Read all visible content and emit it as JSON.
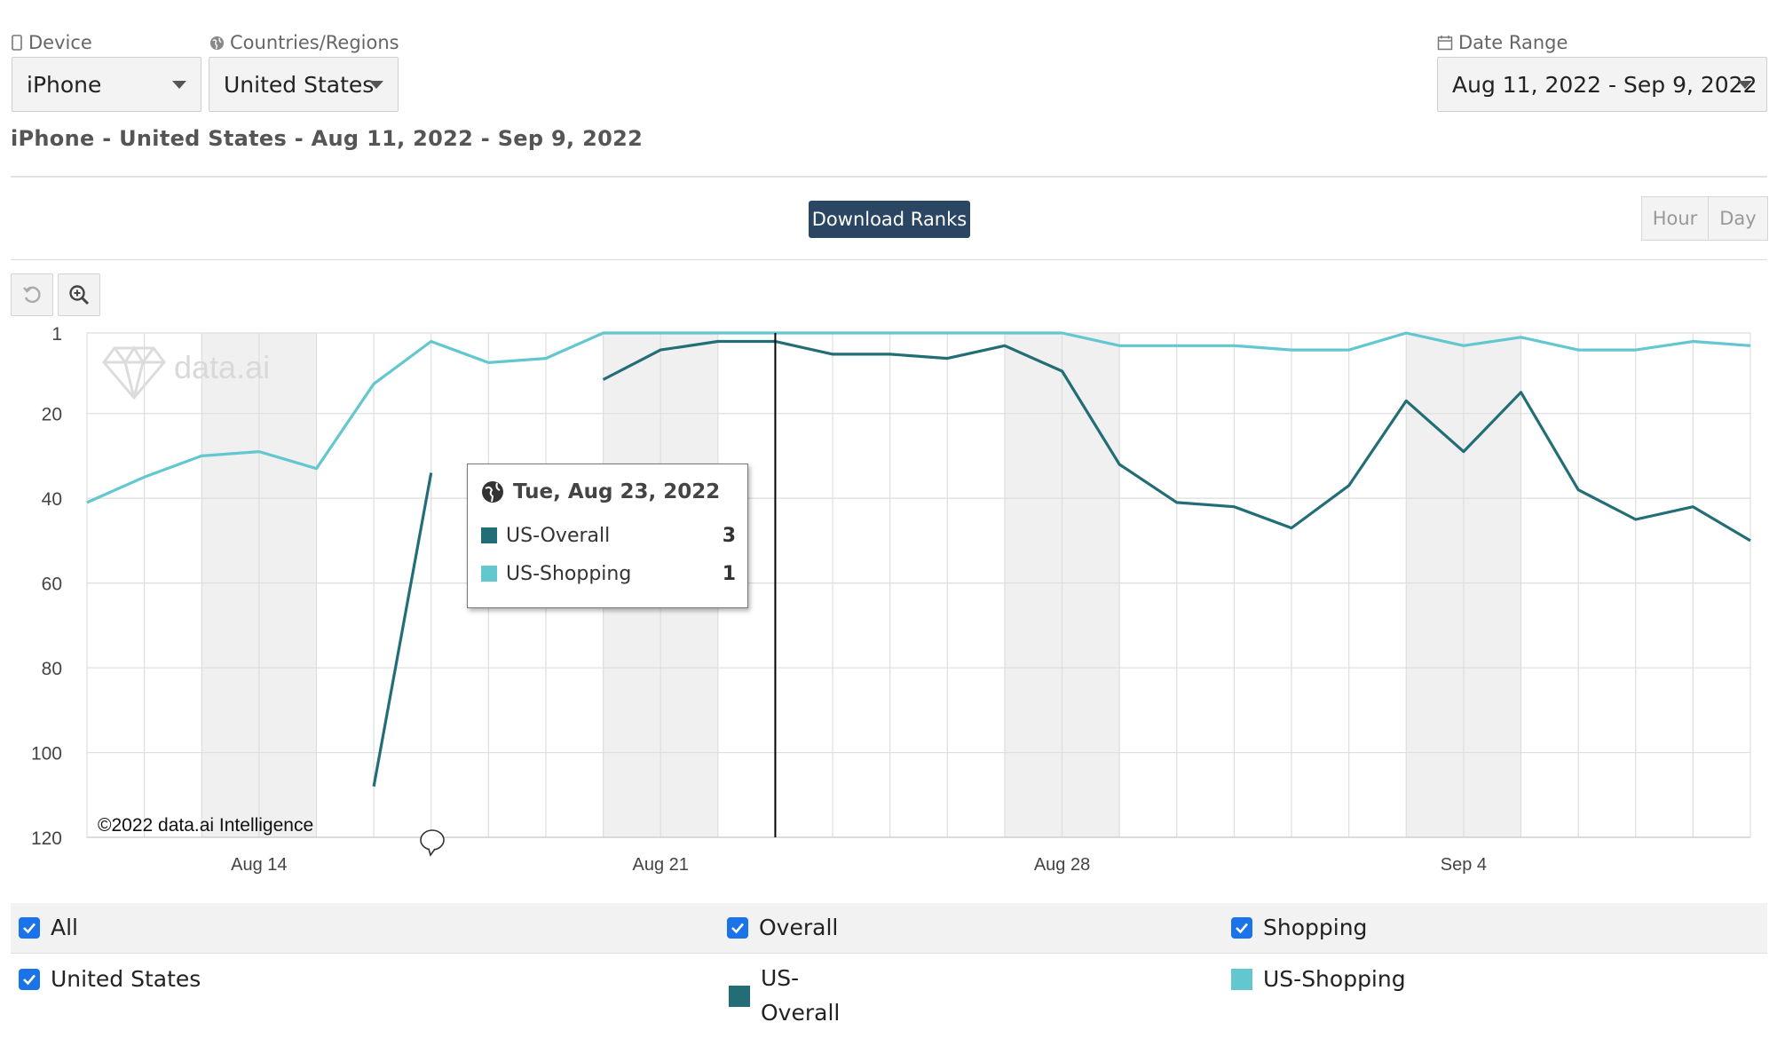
{
  "filters": {
    "device": {
      "label": "Device",
      "value": "iPhone"
    },
    "region": {
      "label": "Countries/Regions",
      "value": "United States"
    },
    "date_range": {
      "label": "Date Range",
      "value": "Aug 11, 2022 - Sep 9, 2022"
    }
  },
  "subtitle": "iPhone - United States - Aug 11, 2022 - Sep 9, 2022",
  "download_button": "Download Ranks",
  "granularity": {
    "hour": "Hour",
    "day": "Day",
    "selected": "Day"
  },
  "toolbar": {
    "reset_icon": "reset-icon",
    "zoom_icon": "zoom-icon"
  },
  "watermark": "data.ai",
  "copyright": "©2022 data.ai Intelligence",
  "tooltip": {
    "date": "Tue, Aug 23, 2022",
    "rows": [
      {
        "name": "US-Overall",
        "value": "3"
      },
      {
        "name": "US-Shopping",
        "value": "1"
      }
    ]
  },
  "legend": {
    "checkboxes": [
      {
        "label": "All",
        "checked": true
      },
      {
        "label": "Overall",
        "checked": true
      },
      {
        "label": "Shopping",
        "checked": true
      },
      {
        "label": "United States",
        "checked": true
      }
    ],
    "series": [
      {
        "name": "US-Overall",
        "color": "#236e76"
      },
      {
        "name": "US-Shopping",
        "color": "#63c7d0"
      }
    ]
  },
  "colors": {
    "overall": "#236e76",
    "shopping": "#63c7d0",
    "primary": "#2b4663",
    "checkbox": "#1a73e8"
  },
  "chart_data": {
    "type": "line",
    "title": "",
    "y_axis": {
      "reversed": true,
      "range": [
        1,
        120
      ],
      "ticks": [
        "1",
        "20",
        "40",
        "60",
        "80",
        "100",
        "120"
      ]
    },
    "x_axis": {
      "tick_labels": [
        "Aug 14",
        "Aug 21",
        "Aug 28",
        "Sep 4"
      ]
    },
    "grid": true,
    "weekend_shading": true,
    "x": [
      "Aug 11",
      "Aug 12",
      "Aug 13",
      "Aug 14",
      "Aug 15",
      "Aug 16",
      "Aug 17",
      "Aug 18",
      "Aug 19",
      "Aug 20",
      "Aug 21",
      "Aug 22",
      "Aug 23",
      "Aug 24",
      "Aug 25",
      "Aug 26",
      "Aug 27",
      "Aug 28",
      "Aug 29",
      "Aug 30",
      "Aug 31",
      "Sep 1",
      "Sep 2",
      "Sep 3",
      "Sep 4",
      "Sep 5",
      "Sep 6",
      "Sep 7",
      "Sep 8",
      "Sep 9"
    ],
    "series": [
      {
        "name": "US-Overall",
        "values": [
          null,
          null,
          null,
          null,
          null,
          108,
          34,
          null,
          null,
          12,
          5,
          3,
          3,
          6,
          6,
          7,
          4,
          10,
          32,
          41,
          42,
          47,
          37,
          17,
          29,
          15,
          38,
          45,
          42,
          50
        ]
      },
      {
        "name": "US-Shopping",
        "values": [
          41,
          35,
          30,
          29,
          33,
          13,
          3,
          8,
          7,
          1,
          1,
          1,
          1,
          1,
          1,
          1,
          1,
          1,
          4,
          4,
          4,
          5,
          5,
          1,
          4,
          2,
          5,
          5,
          3,
          4
        ]
      }
    ]
  }
}
